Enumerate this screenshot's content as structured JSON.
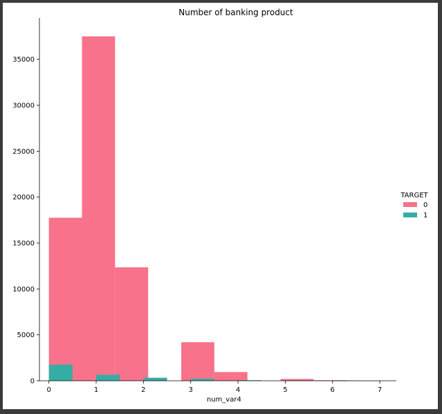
{
  "chart_data": {
    "type": "bar",
    "title": "Number of banking product",
    "xlabel": "num_var4",
    "ylabel": "",
    "xlim": [
      -0.2,
      7.35
    ],
    "ylim": [
      0,
      39500
    ],
    "x_ticks": [
      0,
      1,
      2,
      3,
      4,
      5,
      6,
      7
    ],
    "y_ticks": [
      0,
      5000,
      10000,
      15000,
      20000,
      25000,
      30000,
      35000
    ],
    "grid": false,
    "legend": {
      "title": "TARGET",
      "placement": "right"
    },
    "series": [
      {
        "name": "0",
        "color": "#f7728a",
        "bars": [
          {
            "x0": 0.0,
            "x1": 0.7,
            "value": 17750
          },
          {
            "x0": 0.7,
            "x1": 1.4,
            "value": 37500
          },
          {
            "x0": 1.4,
            "x1": 2.1,
            "value": 12350
          },
          {
            "x0": 2.8,
            "x1": 3.5,
            "value": 4200
          },
          {
            "x0": 3.5,
            "x1": 4.2,
            "value": 950
          },
          {
            "x0": 4.9,
            "x1": 5.6,
            "value": 200
          },
          {
            "x0": 5.6,
            "x1": 6.3,
            "value": 60
          },
          {
            "x0": 6.3,
            "x1": 7.0,
            "value": 10
          }
        ]
      },
      {
        "name": "1",
        "color": "#36ada4",
        "bars": [
          {
            "x0": 0.0,
            "x1": 0.5,
            "value": 1750
          },
          {
            "x0": 1.0,
            "x1": 1.5,
            "value": 650
          },
          {
            "x0": 2.0,
            "x1": 2.5,
            "value": 330
          },
          {
            "x0": 3.0,
            "x1": 3.5,
            "value": 220
          },
          {
            "x0": 4.0,
            "x1": 4.5,
            "value": 60
          },
          {
            "x0": 5.0,
            "x1": 5.5,
            "value": 15
          },
          {
            "x0": 6.0,
            "x1": 6.5,
            "value": 5
          }
        ]
      }
    ]
  }
}
